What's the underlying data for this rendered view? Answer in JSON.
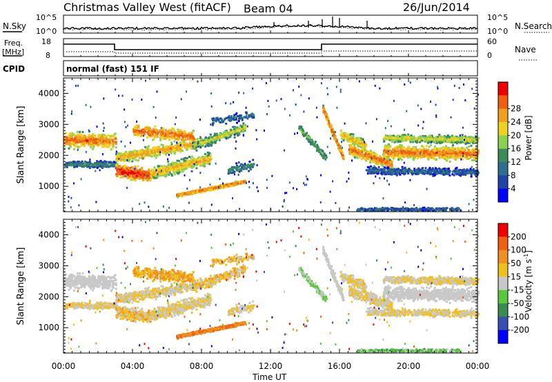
{
  "header": {
    "station": "Christmas Valley West (fitACF)",
    "beam": "Beam 04",
    "date": "26/Jun/2014"
  },
  "summary": {
    "nsky_label": "N.Sky",
    "nsearch_label": "N.Search",
    "freq_label_1": "Freq.",
    "freq_label_2": "[MHz]",
    "nave_label": "Nave",
    "cpid_label": "CPID",
    "cpid_value": "normal (fast) 151 IF",
    "noise_ticks_left": [
      "10^5",
      "10^0"
    ],
    "noise_ticks_right": [
      "10^5",
      "10^0"
    ],
    "freq_ticks": [
      "18",
      "8"
    ],
    "nave_ticks": [
      "60",
      "0"
    ]
  },
  "colors": {
    "power_scale": [
      "#0000ff",
      "#1e44a8",
      "#2e6e8e",
      "#3c8c5a",
      "#8cd050",
      "#f0d020",
      "#f0a020",
      "#f06010",
      "#f00000"
    ],
    "velocity_scale": [
      "#0000ff",
      "#3a4fb0",
      "#3a8c50",
      "#5ac83c",
      "#c8c8c8",
      "#f0c020",
      "#f09020",
      "#f06010",
      "#f00000"
    ]
  },
  "chart_data": [
    {
      "type": "heatmap",
      "name_panel": "power",
      "ylabel": "Slant Range [km]",
      "yticks": [
        "1000",
        "2000",
        "3000",
        "4000"
      ],
      "colorbar_label": "Power [dB]",
      "colorbar_ticks": [
        "4",
        "8",
        "12",
        "16",
        "20",
        "24",
        "28"
      ],
      "ylim": [
        180,
        4500
      ]
    },
    {
      "type": "heatmap",
      "name_panel": "velocity",
      "ylabel": "Slant Range [km]",
      "yticks": [
        "1000",
        "2000",
        "3000",
        "4000"
      ],
      "colorbar_label": "Velocity [m s",
      "colorbar_label_sup": "-1",
      "colorbar_label_end": "]",
      "colorbar_ticks": [
        "200",
        "100",
        "50",
        "15",
        "-15",
        "-50",
        "-100",
        "-200"
      ],
      "ylim": [
        180,
        4500
      ]
    }
  ],
  "time_axis": {
    "xlabel": "Time UT",
    "ticks": [
      "00:00",
      "04:00",
      "08:00",
      "12:00",
      "16:00",
      "20:00",
      "00:00"
    ]
  }
}
